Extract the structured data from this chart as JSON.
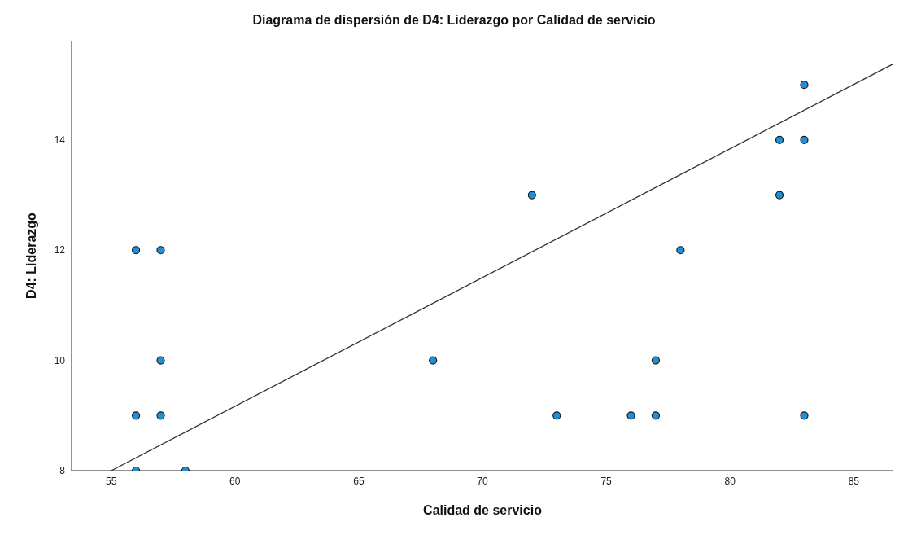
{
  "chart_data": {
    "type": "scatter",
    "title": "Diagrama de dispersión de D4: Liderazgo por Calidad de servicio",
    "xlabel": "Calidad de servicio",
    "ylabel": "D4: Liderazgo",
    "series": [
      {
        "marker": "circle",
        "color": "#1f8fd8",
        "x": [
          56,
          57,
          56,
          57,
          57,
          56,
          58,
          68,
          72,
          73,
          76,
          77,
          77,
          78,
          82,
          82,
          83,
          83,
          83
        ],
        "values": [
          12,
          12,
          9,
          9,
          10,
          8,
          8,
          10,
          13,
          9,
          9,
          10,
          9,
          12,
          14,
          13,
          15,
          14,
          9
        ]
      },
      {
        "type": "line",
        "marker": "none",
        "color": "#333333",
        "x": [
          55,
          86.6
        ],
        "values": [
          8,
          15.38
        ]
      }
    ],
    "xlim": [
      53.4,
      86.6
    ],
    "xticks": [
      55,
      60,
      65,
      70,
      75,
      80,
      85
    ],
    "ylim": [
      8,
      15.8
    ],
    "yticks": [
      8,
      10,
      12,
      14
    ],
    "grid": false,
    "legend": false
  }
}
